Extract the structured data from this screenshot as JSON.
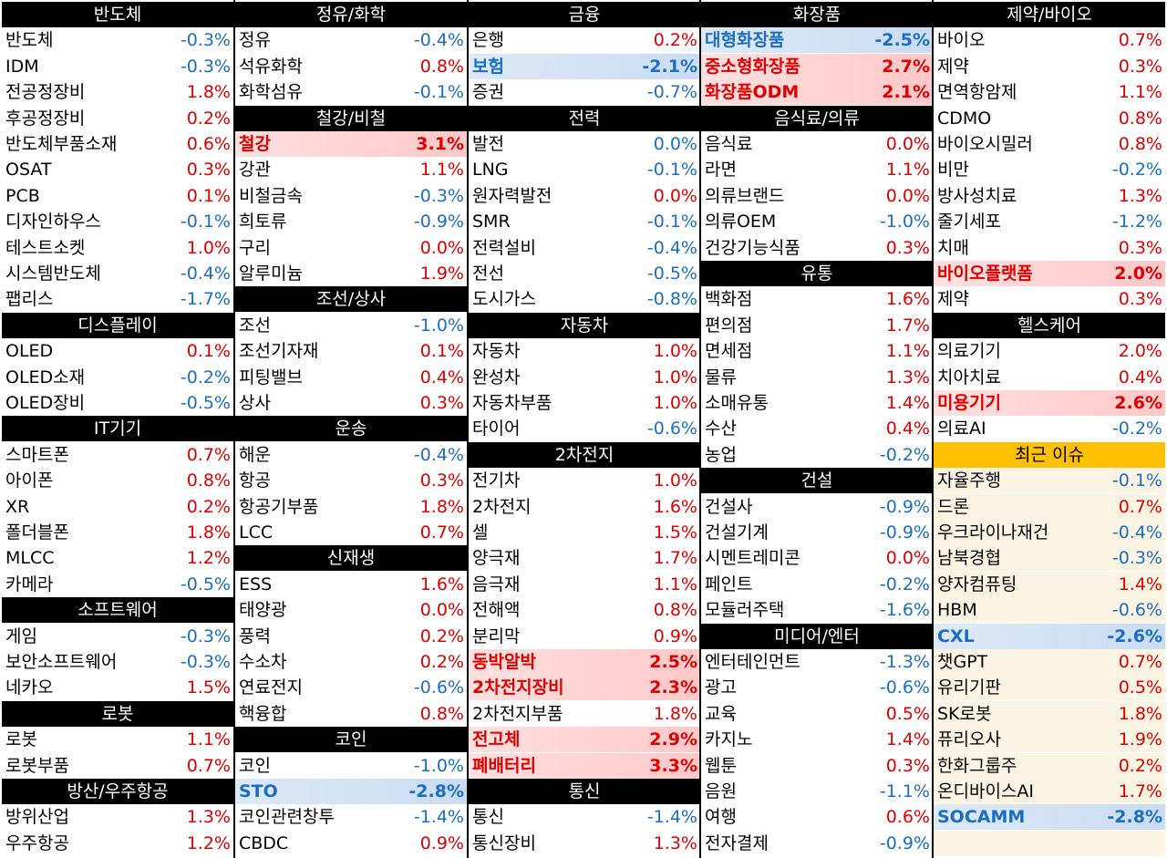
{
  "columns": [
    {
      "cells": [
        {
          "t": "h",
          "label": "반도체"
        },
        {
          "t": "r",
          "name": "반도체",
          "val": "-0.3%",
          "dir": "down"
        },
        {
          "t": "r",
          "name": "IDM",
          "val": "-0.3%",
          "dir": "down"
        },
        {
          "t": "r",
          "name": "전공정장비",
          "val": "1.8%",
          "dir": "up"
        },
        {
          "t": "r",
          "name": "후공정장비",
          "val": "0.2%",
          "dir": "up"
        },
        {
          "t": "r",
          "name": "반도체부품소재",
          "val": "0.6%",
          "dir": "up"
        },
        {
          "t": "r",
          "name": "OSAT",
          "val": "0.3%",
          "dir": "up"
        },
        {
          "t": "r",
          "name": "PCB",
          "val": "0.1%",
          "dir": "up"
        },
        {
          "t": "r",
          "name": "디자인하우스",
          "val": "-0.1%",
          "dir": "down"
        },
        {
          "t": "r",
          "name": "테스트소켓",
          "val": "1.0%",
          "dir": "up"
        },
        {
          "t": "r",
          "name": "시스템반도체",
          "val": "-0.4%",
          "dir": "down"
        },
        {
          "t": "r",
          "name": "팹리스",
          "val": "-1.7%",
          "dir": "down"
        },
        {
          "t": "h",
          "label": "디스플레이"
        },
        {
          "t": "r",
          "name": "OLED",
          "val": "0.1%",
          "dir": "up"
        },
        {
          "t": "r",
          "name": "OLED소재",
          "val": "-0.2%",
          "dir": "down"
        },
        {
          "t": "r",
          "name": "OLED장비",
          "val": "-0.5%",
          "dir": "down"
        },
        {
          "t": "h",
          "label": "IT기기"
        },
        {
          "t": "r",
          "name": "스마트폰",
          "val": "0.7%",
          "dir": "up"
        },
        {
          "t": "r",
          "name": "아이폰",
          "val": "0.8%",
          "dir": "up"
        },
        {
          "t": "r",
          "name": "XR",
          "val": "0.2%",
          "dir": "up"
        },
        {
          "t": "r",
          "name": "폴더블폰",
          "val": "1.8%",
          "dir": "up"
        },
        {
          "t": "r",
          "name": "MLCC",
          "val": "1.2%",
          "dir": "up"
        },
        {
          "t": "r",
          "name": "카메라",
          "val": "-0.5%",
          "dir": "down"
        },
        {
          "t": "h",
          "label": "소프트웨어"
        },
        {
          "t": "r",
          "name": "게임",
          "val": "-0.3%",
          "dir": "down"
        },
        {
          "t": "r",
          "name": "보안소프트웨어",
          "val": "-0.3%",
          "dir": "down"
        },
        {
          "t": "r",
          "name": "네카오",
          "val": "1.5%",
          "dir": "up"
        },
        {
          "t": "h",
          "label": "로봇"
        },
        {
          "t": "r",
          "name": "로봇",
          "val": "1.1%",
          "dir": "up"
        },
        {
          "t": "r",
          "name": "로봇부품",
          "val": "0.7%",
          "dir": "up"
        },
        {
          "t": "h",
          "label": "방산/우주항공"
        },
        {
          "t": "r",
          "name": "방위산업",
          "val": "1.3%",
          "dir": "up"
        },
        {
          "t": "r",
          "name": "우주항공",
          "val": "1.2%",
          "dir": "up"
        }
      ]
    },
    {
      "cells": [
        {
          "t": "h",
          "label": "정유/화학"
        },
        {
          "t": "r",
          "name": "정유",
          "val": "-0.4%",
          "dir": "down"
        },
        {
          "t": "r",
          "name": "석유화학",
          "val": "0.8%",
          "dir": "up"
        },
        {
          "t": "r",
          "name": "화학섬유",
          "val": "-0.1%",
          "dir": "down"
        },
        {
          "t": "h",
          "label": "철강/비철"
        },
        {
          "t": "r",
          "name": "철강",
          "val": "3.1%",
          "dir": "up",
          "hot": "up"
        },
        {
          "t": "r",
          "name": "강관",
          "val": "1.1%",
          "dir": "up"
        },
        {
          "t": "r",
          "name": "비철금속",
          "val": "-0.3%",
          "dir": "down"
        },
        {
          "t": "r",
          "name": "희토류",
          "val": "-0.9%",
          "dir": "down"
        },
        {
          "t": "r",
          "name": "구리",
          "val": "0.0%",
          "dir": "up"
        },
        {
          "t": "r",
          "name": "알루미늄",
          "val": "1.9%",
          "dir": "up"
        },
        {
          "t": "h",
          "label": "조선/상사"
        },
        {
          "t": "r",
          "name": "조선",
          "val": "-1.0%",
          "dir": "down"
        },
        {
          "t": "r",
          "name": "조선기자재",
          "val": "0.1%",
          "dir": "up"
        },
        {
          "t": "r",
          "name": "피팅밸브",
          "val": "0.4%",
          "dir": "up"
        },
        {
          "t": "r",
          "name": "상사",
          "val": "0.3%",
          "dir": "up"
        },
        {
          "t": "h",
          "label": "운송"
        },
        {
          "t": "r",
          "name": "해운",
          "val": "-0.4%",
          "dir": "down"
        },
        {
          "t": "r",
          "name": "항공",
          "val": "0.3%",
          "dir": "up"
        },
        {
          "t": "r",
          "name": "항공기부품",
          "val": "1.8%",
          "dir": "up"
        },
        {
          "t": "r",
          "name": "LCC",
          "val": "0.7%",
          "dir": "up"
        },
        {
          "t": "h",
          "label": "신재생"
        },
        {
          "t": "r",
          "name": "ESS",
          "val": "1.6%",
          "dir": "up"
        },
        {
          "t": "r",
          "name": "태양광",
          "val": "0.0%",
          "dir": "up"
        },
        {
          "t": "r",
          "name": "풍력",
          "val": "0.2%",
          "dir": "up"
        },
        {
          "t": "r",
          "name": "수소차",
          "val": "0.2%",
          "dir": "up"
        },
        {
          "t": "r",
          "name": "연료전지",
          "val": "-0.6%",
          "dir": "down"
        },
        {
          "t": "r",
          "name": "핵융합",
          "val": "0.8%",
          "dir": "up"
        },
        {
          "t": "h",
          "label": "코인"
        },
        {
          "t": "r",
          "name": "코인",
          "val": "-1.0%",
          "dir": "down"
        },
        {
          "t": "r",
          "name": "STO",
          "val": "-2.8%",
          "dir": "down",
          "hot": "down"
        },
        {
          "t": "r",
          "name": "코인관련창투",
          "val": "-1.4%",
          "dir": "down"
        },
        {
          "t": "r",
          "name": "CBDC",
          "val": "0.9%",
          "dir": "up"
        }
      ]
    },
    {
      "cells": [
        {
          "t": "h",
          "label": "금융"
        },
        {
          "t": "r",
          "name": "은행",
          "val": "0.2%",
          "dir": "up"
        },
        {
          "t": "r",
          "name": "보험",
          "val": "-2.1%",
          "dir": "down",
          "hot": "down"
        },
        {
          "t": "r",
          "name": "증권",
          "val": "-0.7%",
          "dir": "down"
        },
        {
          "t": "h",
          "label": "전력"
        },
        {
          "t": "r",
          "name": "발전",
          "val": "0.0%",
          "dir": "down"
        },
        {
          "t": "r",
          "name": "LNG",
          "val": "-0.1%",
          "dir": "down"
        },
        {
          "t": "r",
          "name": "원자력발전",
          "val": "0.0%",
          "dir": "up"
        },
        {
          "t": "r",
          "name": "SMR",
          "val": "-0.1%",
          "dir": "down"
        },
        {
          "t": "r",
          "name": "전력설비",
          "val": "-0.4%",
          "dir": "down"
        },
        {
          "t": "r",
          "name": "전선",
          "val": "-0.5%",
          "dir": "down"
        },
        {
          "t": "r",
          "name": "도시가스",
          "val": "-0.8%",
          "dir": "down"
        },
        {
          "t": "h",
          "label": "자동차"
        },
        {
          "t": "r",
          "name": "자동차",
          "val": "1.0%",
          "dir": "up"
        },
        {
          "t": "r",
          "name": "완성차",
          "val": "1.0%",
          "dir": "up"
        },
        {
          "t": "r",
          "name": "자동차부품",
          "val": "1.0%",
          "dir": "up"
        },
        {
          "t": "r",
          "name": "타이어",
          "val": "-0.6%",
          "dir": "down"
        },
        {
          "t": "h",
          "label": "2차전지"
        },
        {
          "t": "r",
          "name": "전기차",
          "val": "1.0%",
          "dir": "up"
        },
        {
          "t": "r",
          "name": "2차전지",
          "val": "1.6%",
          "dir": "up"
        },
        {
          "t": "r",
          "name": "셀",
          "val": "1.5%",
          "dir": "up"
        },
        {
          "t": "r",
          "name": "양극재",
          "val": "1.7%",
          "dir": "up"
        },
        {
          "t": "r",
          "name": "음극재",
          "val": "1.1%",
          "dir": "up"
        },
        {
          "t": "r",
          "name": "전해액",
          "val": "0.8%",
          "dir": "up"
        },
        {
          "t": "r",
          "name": "분리막",
          "val": "0.9%",
          "dir": "up"
        },
        {
          "t": "r",
          "name": "동박알박",
          "val": "2.5%",
          "dir": "up",
          "hot": "up"
        },
        {
          "t": "r",
          "name": "2차전지장비",
          "val": "2.3%",
          "dir": "up",
          "hot": "up"
        },
        {
          "t": "r",
          "name": "2차전지부품",
          "val": "1.8%",
          "dir": "up"
        },
        {
          "t": "r",
          "name": "전고체",
          "val": "2.9%",
          "dir": "up",
          "hot": "up"
        },
        {
          "t": "r",
          "name": "폐배터리",
          "val": "3.3%",
          "dir": "up",
          "hot": "up"
        },
        {
          "t": "h",
          "label": "통신"
        },
        {
          "t": "r",
          "name": "통신",
          "val": "-1.4%",
          "dir": "down"
        },
        {
          "t": "r",
          "name": "통신장비",
          "val": "1.3%",
          "dir": "up"
        }
      ]
    },
    {
      "cells": [
        {
          "t": "h",
          "label": "화장품"
        },
        {
          "t": "r",
          "name": "대형화장품",
          "val": "-2.5%",
          "dir": "down",
          "hot": "down"
        },
        {
          "t": "r",
          "name": "중소형화장품",
          "val": "2.7%",
          "dir": "up",
          "hot": "up"
        },
        {
          "t": "r",
          "name": "화장품ODM",
          "val": "2.1%",
          "dir": "up",
          "hot": "up"
        },
        {
          "t": "h",
          "label": "음식료/의류"
        },
        {
          "t": "r",
          "name": "음식료",
          "val": "0.0%",
          "dir": "up"
        },
        {
          "t": "r",
          "name": "라면",
          "val": "1.1%",
          "dir": "up"
        },
        {
          "t": "r",
          "name": "의류브랜드",
          "val": "0.0%",
          "dir": "up"
        },
        {
          "t": "r",
          "name": "의류OEM",
          "val": "-1.0%",
          "dir": "down"
        },
        {
          "t": "r",
          "name": "건강기능식품",
          "val": "0.3%",
          "dir": "up"
        },
        {
          "t": "h",
          "label": "유통"
        },
        {
          "t": "r",
          "name": "백화점",
          "val": "1.6%",
          "dir": "up"
        },
        {
          "t": "r",
          "name": "편의점",
          "val": "1.7%",
          "dir": "up"
        },
        {
          "t": "r",
          "name": "면세점",
          "val": "1.1%",
          "dir": "up"
        },
        {
          "t": "r",
          "name": "물류",
          "val": "1.3%",
          "dir": "up"
        },
        {
          "t": "r",
          "name": "소매유통",
          "val": "1.4%",
          "dir": "up"
        },
        {
          "t": "r",
          "name": "수산",
          "val": "0.4%",
          "dir": "up"
        },
        {
          "t": "r",
          "name": "농업",
          "val": "-0.2%",
          "dir": "down"
        },
        {
          "t": "h",
          "label": "건설"
        },
        {
          "t": "r",
          "name": "건설사",
          "val": "-0.9%",
          "dir": "down"
        },
        {
          "t": "r",
          "name": "건설기계",
          "val": "-0.9%",
          "dir": "down"
        },
        {
          "t": "r",
          "name": "시멘트레미콘",
          "val": "0.0%",
          "dir": "up"
        },
        {
          "t": "r",
          "name": "페인트",
          "val": "-0.2%",
          "dir": "down"
        },
        {
          "t": "r",
          "name": "모듈러주택",
          "val": "-1.6%",
          "dir": "down"
        },
        {
          "t": "h",
          "label": "미디어/엔터"
        },
        {
          "t": "r",
          "name": "엔터테인먼트",
          "val": "-1.3%",
          "dir": "down"
        },
        {
          "t": "r",
          "name": "광고",
          "val": "-0.6%",
          "dir": "down"
        },
        {
          "t": "r",
          "name": "교육",
          "val": "0.5%",
          "dir": "up"
        },
        {
          "t": "r",
          "name": "카지노",
          "val": "1.4%",
          "dir": "up"
        },
        {
          "t": "r",
          "name": "웹툰",
          "val": "0.3%",
          "dir": "up"
        },
        {
          "t": "r",
          "name": "음원",
          "val": "-1.1%",
          "dir": "down"
        },
        {
          "t": "r",
          "name": "여행",
          "val": "0.6%",
          "dir": "up"
        },
        {
          "t": "r",
          "name": "전자결제",
          "val": "-0.9%",
          "dir": "down"
        }
      ]
    },
    {
      "cells": [
        {
          "t": "h",
          "label": "제약/바이오"
        },
        {
          "t": "r",
          "name": "바이오",
          "val": "0.7%",
          "dir": "up"
        },
        {
          "t": "r",
          "name": "제약",
          "val": "0.3%",
          "dir": "up"
        },
        {
          "t": "r",
          "name": "면역항암제",
          "val": "1.1%",
          "dir": "up"
        },
        {
          "t": "r",
          "name": "CDMO",
          "val": "0.8%",
          "dir": "up"
        },
        {
          "t": "r",
          "name": "바이오시밀러",
          "val": "0.8%",
          "dir": "up"
        },
        {
          "t": "r",
          "name": "비만",
          "val": "-0.2%",
          "dir": "down"
        },
        {
          "t": "r",
          "name": "방사성치료",
          "val": "1.3%",
          "dir": "up"
        },
        {
          "t": "r",
          "name": "줄기세포",
          "val": "-1.2%",
          "dir": "down"
        },
        {
          "t": "r",
          "name": "치매",
          "val": "0.3%",
          "dir": "up"
        },
        {
          "t": "r",
          "name": "바이오플랫폼",
          "val": "2.0%",
          "dir": "up",
          "hot": "up"
        },
        {
          "t": "r",
          "name": "제약",
          "val": "0.3%",
          "dir": "up"
        },
        {
          "t": "h",
          "label": "헬스케어"
        },
        {
          "t": "r",
          "name": "의료기기",
          "val": "2.0%",
          "dir": "up"
        },
        {
          "t": "r",
          "name": "치아치료",
          "val": "0.4%",
          "dir": "up"
        },
        {
          "t": "r",
          "name": "미용기기",
          "val": "2.6%",
          "dir": "up",
          "hot": "up"
        },
        {
          "t": "r",
          "name": "의료AI",
          "val": "-0.2%",
          "dir": "down"
        },
        {
          "t": "h",
          "label": "최근 이슈",
          "style": "yellow"
        },
        {
          "t": "r",
          "name": "자율주행",
          "val": "-0.1%",
          "dir": "down",
          "bg": "cream"
        },
        {
          "t": "r",
          "name": "드론",
          "val": "0.7%",
          "dir": "up",
          "bg": "cream"
        },
        {
          "t": "r",
          "name": "우크라이나재건",
          "val": "-0.4%",
          "dir": "down",
          "bg": "cream"
        },
        {
          "t": "r",
          "name": "남북경협",
          "val": "-0.3%",
          "dir": "down",
          "bg": "cream"
        },
        {
          "t": "r",
          "name": "양자컴퓨팅",
          "val": "1.4%",
          "dir": "up",
          "bg": "cream"
        },
        {
          "t": "r",
          "name": "HBM",
          "val": "-0.6%",
          "dir": "down",
          "bg": "cream"
        },
        {
          "t": "r",
          "name": "CXL",
          "val": "-2.6%",
          "dir": "down",
          "hot": "down"
        },
        {
          "t": "r",
          "name": "챗GPT",
          "val": "0.7%",
          "dir": "up",
          "bg": "cream"
        },
        {
          "t": "r",
          "name": "유리기판",
          "val": "0.5%",
          "dir": "up",
          "bg": "cream"
        },
        {
          "t": "r",
          "name": "SK로봇",
          "val": "1.8%",
          "dir": "up",
          "bg": "cream"
        },
        {
          "t": "r",
          "name": "퓨리오사",
          "val": "1.9%",
          "dir": "up",
          "bg": "cream"
        },
        {
          "t": "r",
          "name": "한화그룹주",
          "val": "0.2%",
          "dir": "up",
          "bg": "cream"
        },
        {
          "t": "r",
          "name": "온디바이스AI",
          "val": "1.7%",
          "dir": "up",
          "bg": "cream"
        },
        {
          "t": "r",
          "name": "SOCAMM",
          "val": "-2.8%",
          "dir": "down",
          "hot": "down"
        },
        {
          "t": "e",
          "bg": "cream"
        }
      ]
    }
  ],
  "colors": {
    "up": "#e00000",
    "down": "#1a6fc4",
    "header_bg": "#000000",
    "issue_header_bg": "#ffc000"
  }
}
